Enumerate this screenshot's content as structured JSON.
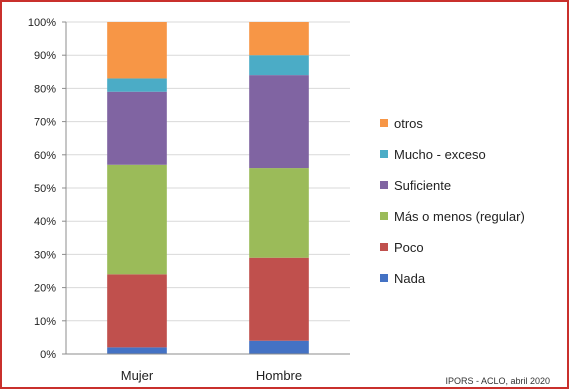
{
  "chart_data": {
    "type": "bar",
    "stacked": true,
    "categories": [
      "Mujer",
      "Hombre"
    ],
    "series": [
      {
        "name": "Nada",
        "color": "#4472c4",
        "values": [
          2,
          4
        ]
      },
      {
        "name": "Poco",
        "color": "#c0504d",
        "values": [
          22,
          25
        ]
      },
      {
        "name": "Más o menos (regular)",
        "color": "#9bbb59",
        "values": [
          33,
          27
        ]
      },
      {
        "name": "Suficiente",
        "color": "#8064a2",
        "values": [
          22,
          28
        ]
      },
      {
        "name": "Mucho - exceso",
        "color": "#4bacc6",
        "values": [
          4,
          6
        ]
      },
      {
        "name": "otros",
        "color": "#f79646",
        "values": [
          17,
          10
        ]
      }
    ],
    "yticks": [
      "0%",
      "10%",
      "20%",
      "30%",
      "40%",
      "50%",
      "60%",
      "70%",
      "80%",
      "90%",
      "100%"
    ],
    "ylim": [
      0,
      100
    ],
    "grid": true,
    "legend": "right",
    "source": "IPORS - ACLO, abril 2020"
  }
}
